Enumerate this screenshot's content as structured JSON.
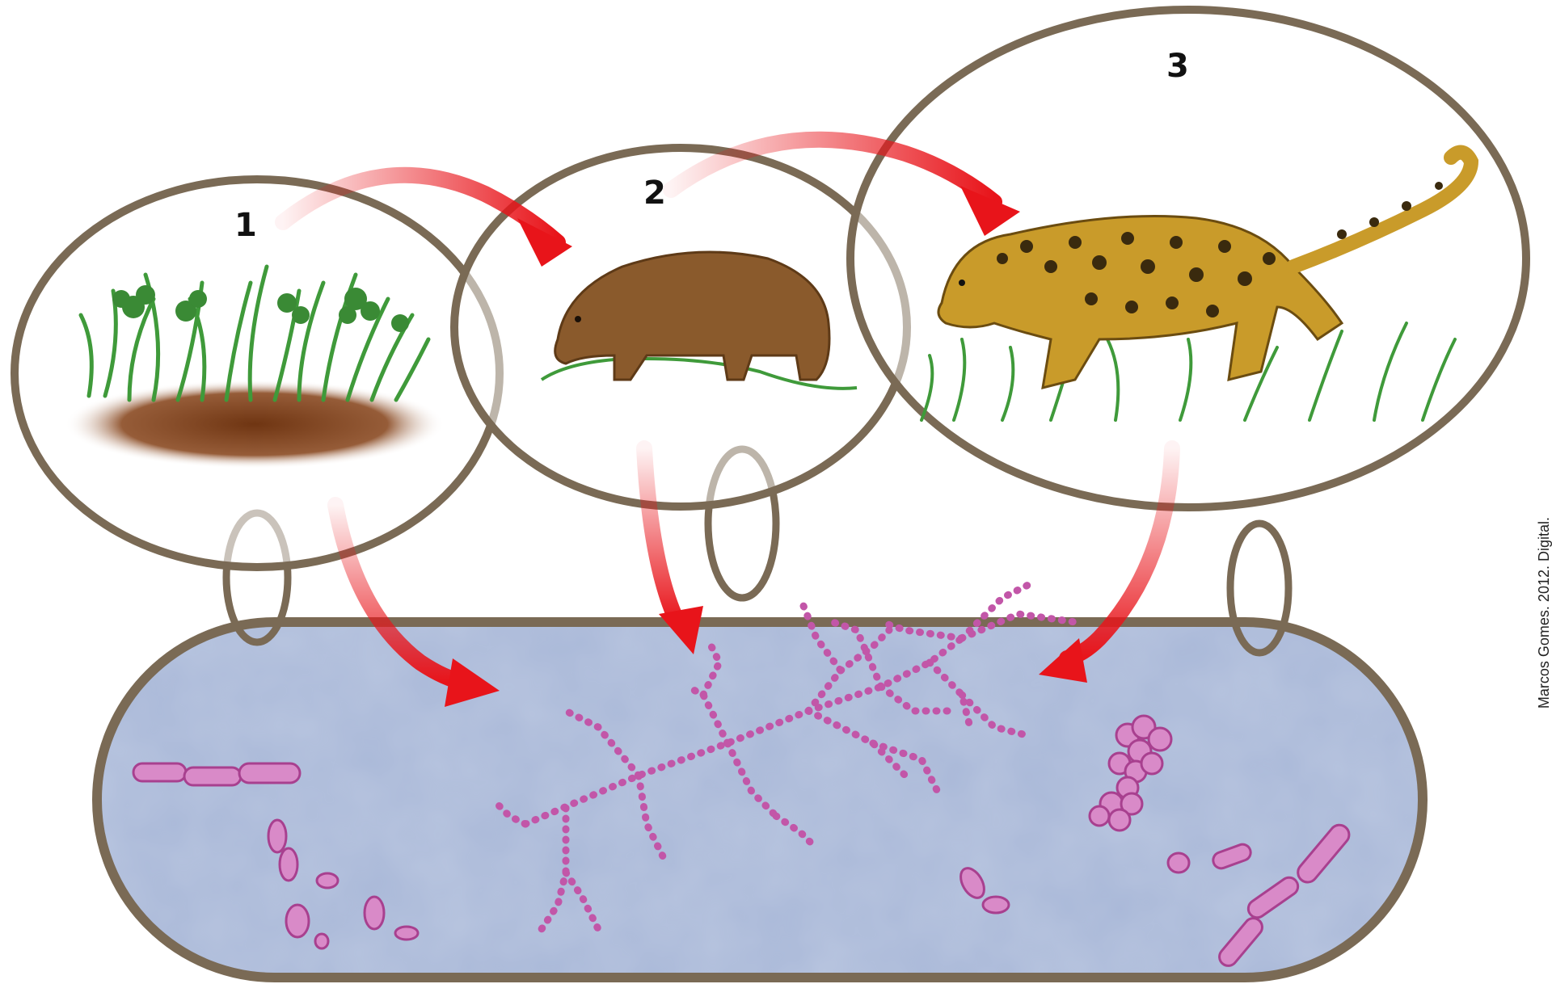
{
  "diagram": {
    "levels": [
      {
        "label": "1",
        "subject": "grass-on-soil"
      },
      {
        "label": "2",
        "subject": "capybara"
      },
      {
        "label": "3",
        "subject": "jaguar"
      }
    ],
    "bottom": {
      "subject": "decomposer-microorganisms"
    },
    "credit": "Marcos Gomes. 2012. Digital.",
    "colors": {
      "ring": "#7a6a55",
      "arrow": "#e8141a",
      "decomposer_bg": "#a9b8d8",
      "bacteria": "#d98ac8",
      "grass": "#3f9a3a",
      "soil": "#7b3f1a",
      "capybara": "#8a5a2c",
      "jaguar": "#c99b2a"
    }
  }
}
